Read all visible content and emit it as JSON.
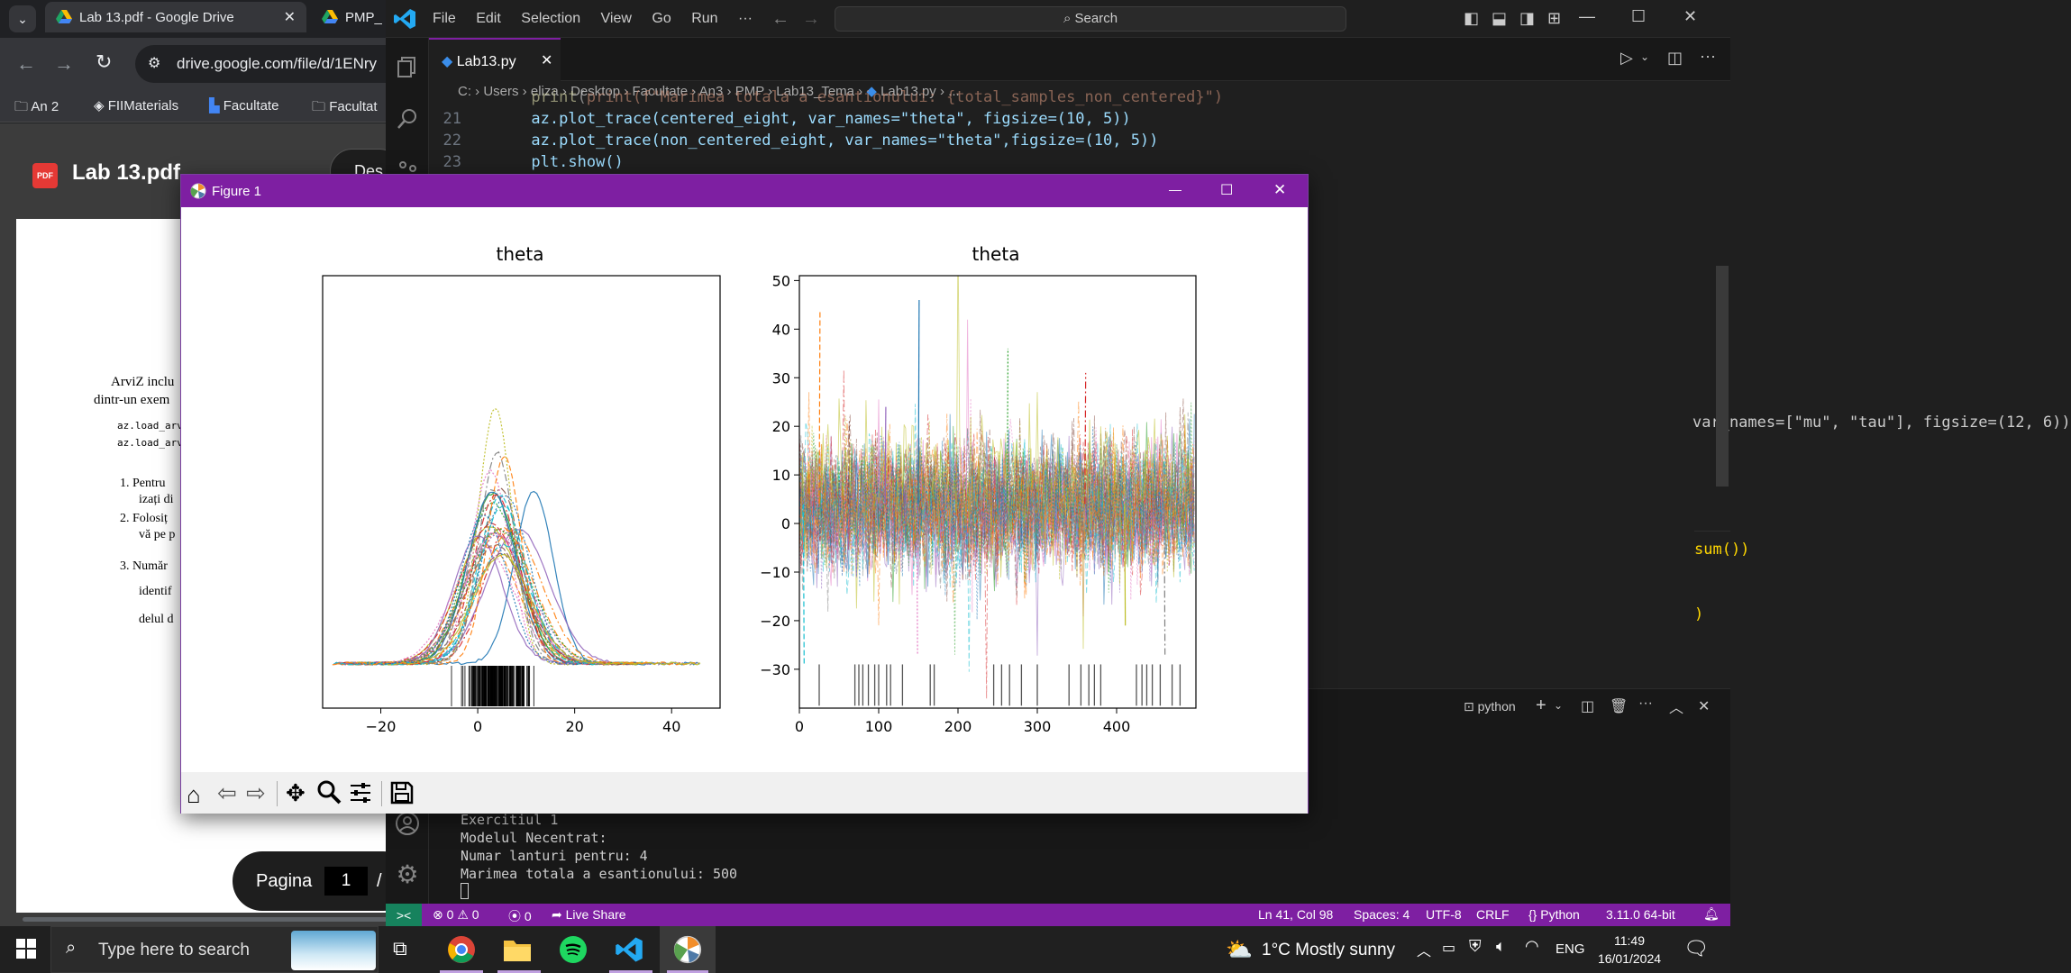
{
  "chrome": {
    "tabs": [
      {
        "label": "Lab 13.pdf - Google Drive"
      },
      {
        "label": "PMP_"
      }
    ],
    "url": "drive.google.com/file/d/1ENry",
    "bookmarks": [
      "An 2",
      "FIIMaterials",
      "Facultate",
      "Facultat"
    ],
    "pdf_badge": "PDF",
    "pdf_title": "Lab 13.pdf",
    "open_btn": "Des",
    "doc": {
      "intro1": "ArviZ inclu",
      "intro2": "dintr-un exem",
      "code1": "az.load_arviz",
      "code2": "az.load_arviz",
      "items": [
        {
          "num": "1.",
          "l1": "Pentru",
          "l2": "izați di"
        },
        {
          "num": "2.",
          "l1": "Folosiț",
          "l2": "vă pe p"
        },
        {
          "num": "3.",
          "l1": "Număr",
          "l2": "identif",
          "l3": "delul d"
        }
      ]
    },
    "page_label": "Pagina",
    "page_value": "1",
    "page_sep": "/"
  },
  "vscode": {
    "menu": [
      "File",
      "Edit",
      "Selection",
      "View",
      "Go",
      "Run",
      "···"
    ],
    "search_placeholder": "Search",
    "tab_label": "Lab13.py",
    "breadcrumb": [
      "C:",
      "Users",
      "eliza",
      "Desktop",
      "Facultate",
      "An3",
      "PMP",
      "Lab13_Tema",
      "Lab13.py",
      "..."
    ],
    "lines": [
      {
        "n": "",
        "t": "print(f\"Marimea totala a esantionului: {total_samples_non_centered}\")"
      },
      {
        "n": "21",
        "t": "az.plot_trace(centered_eight, var_names=\"theta\", figsize=(10, 5))"
      },
      {
        "n": "22",
        "t": "az.plot_trace(non_centered_eight, var_names=\"theta\",figsize=(10, 5))"
      },
      {
        "n": "23",
        "t": "plt.show()"
      }
    ],
    "partial_line_1": "var_names=[\"mu\", \"tau\"], figsize=(12, 6))",
    "partial_line_2": "sum())",
    "partial_line_3": ")",
    "terminal_shell": "python",
    "terminal_lines": [
      "Exercitiul 1",
      "Modelul Necentrat:",
      "Numar lanturi pentru: 4",
      "Marimea totala a esantionului: 500"
    ]
  },
  "figure": {
    "title": "Figure 1",
    "controls": {
      "min": "—",
      "max": "☐",
      "close": "✕"
    }
  },
  "chart_data": [
    {
      "type": "line",
      "title": "theta",
      "xlim": [
        -32,
        50
      ],
      "ylim": [
        0,
        0.23
      ],
      "xticks": [
        "−20",
        "0",
        "20",
        "40"
      ],
      "yticks": [],
      "series": [
        {
          "values": "density curves of 8 groups x 4 chains (KDE), peaks near 0–15"
        }
      ]
    },
    {
      "type": "line",
      "title": "theta",
      "xlim": [
        0,
        500
      ],
      "ylim": [
        -38,
        51
      ],
      "xticks": [
        "0",
        "100",
        "200",
        "300",
        "400"
      ],
      "yticks": [
        "50",
        "40",
        "30",
        "20",
        "10",
        "0",
        "−10",
        "−20",
        "−30"
      ],
      "series": [
        {
          "values": "trace of theta over 500 draws, centred near 5, range about −30 to 47"
        }
      ]
    }
  ],
  "status": {
    "remote": "><",
    "errors": "0",
    "warnings": "0",
    "ports": "0",
    "live_share": "Live Share",
    "position": "Ln 41, Col 98",
    "spaces": "Spaces: 4",
    "encoding": "UTF-8",
    "eol": "CRLF",
    "language": "Python",
    "interpreter": "3.11.0 64-bit"
  },
  "taskbar": {
    "search_placeholder": "Type here to search",
    "weather": "1°C  Mostly sunny",
    "lang": "ENG",
    "time": "11:49",
    "date": "16/01/2024"
  }
}
